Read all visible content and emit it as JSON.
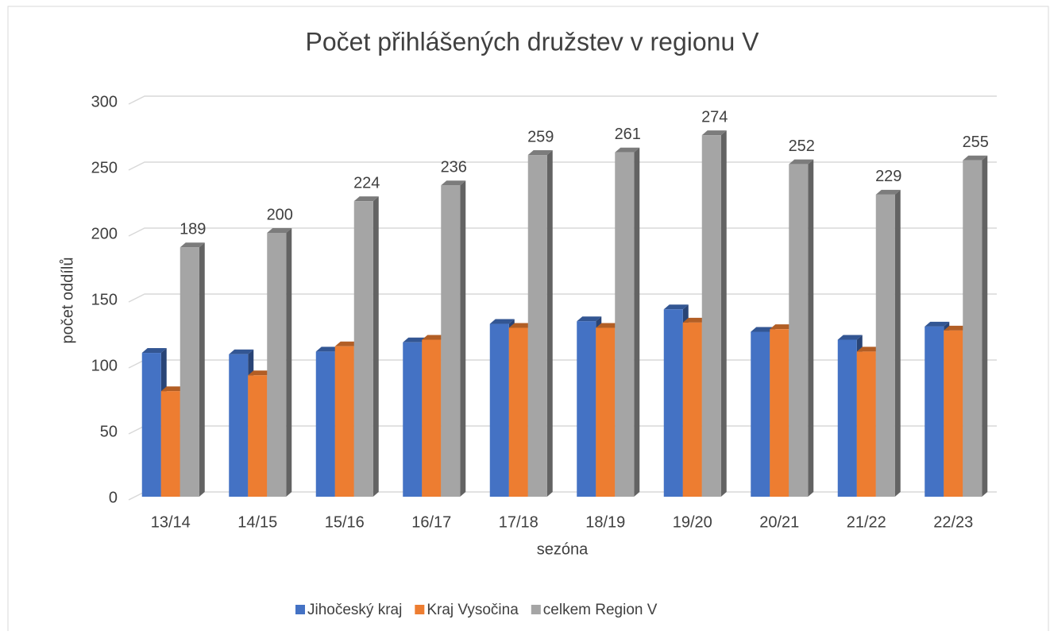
{
  "chart_data": {
    "type": "bar3d",
    "title": "Počet přihlášených družstev v regionu V",
    "x_label": "sezóna",
    "y_label": "počet oddílů",
    "categories": [
      "13/14",
      "14/15",
      "15/16",
      "16/17",
      "17/18",
      "18/19",
      "19/20",
      "20/21",
      "21/22",
      "22/23"
    ],
    "series": [
      {
        "name": "Jihočeský kraj",
        "color": "#4472c4",
        "values": [
          109,
          108,
          110,
          117,
          131,
          133,
          142,
          125,
          119,
          129
        ],
        "show_labels": false
      },
      {
        "name": "Kraj Vysočina",
        "color": "#ed7d31",
        "values": [
          80,
          92,
          114,
          119,
          128,
          128,
          132,
          127,
          110,
          126
        ],
        "show_labels": false
      },
      {
        "name": "celkem Region V",
        "color": "#a5a5a5",
        "values": [
          189,
          200,
          224,
          236,
          259,
          261,
          274,
          252,
          229,
          255
        ],
        "show_labels": true
      }
    ],
    "ylim": [
      0,
      300
    ],
    "yticks": [
      0,
      50,
      100,
      150,
      200,
      250,
      300
    ],
    "grid": true,
    "legend": "bottom"
  }
}
